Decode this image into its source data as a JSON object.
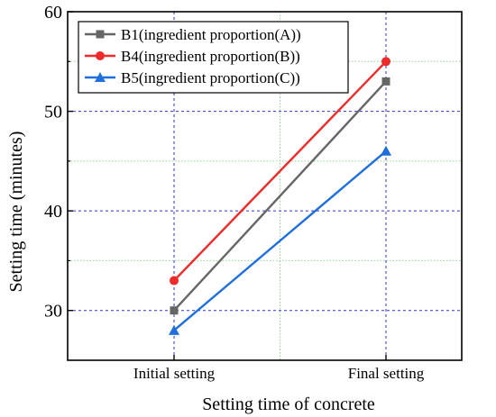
{
  "chart_data": {
    "type": "line",
    "categories": [
      "Initial setting",
      "Final setting"
    ],
    "series": [
      {
        "name": "B1(ingredient proportion(A))",
        "values": [
          30,
          53
        ],
        "color": "#666666",
        "marker": "square"
      },
      {
        "name": "B4(ingredient proportion(B))",
        "values": [
          33,
          55
        ],
        "color": "#ee2a2a",
        "marker": "circle"
      },
      {
        "name": "B5(ingredient proportion(C))",
        "values": [
          28,
          46
        ],
        "color": "#1f6fdc",
        "marker": "triangle"
      }
    ],
    "xlabel": "Setting time of concrete",
    "ylabel": "Setting time (minutes)",
    "ylim": [
      25,
      60
    ],
    "yticks": [
      30,
      40,
      50,
      60
    ],
    "grid": true,
    "legend_position": "top-left"
  }
}
